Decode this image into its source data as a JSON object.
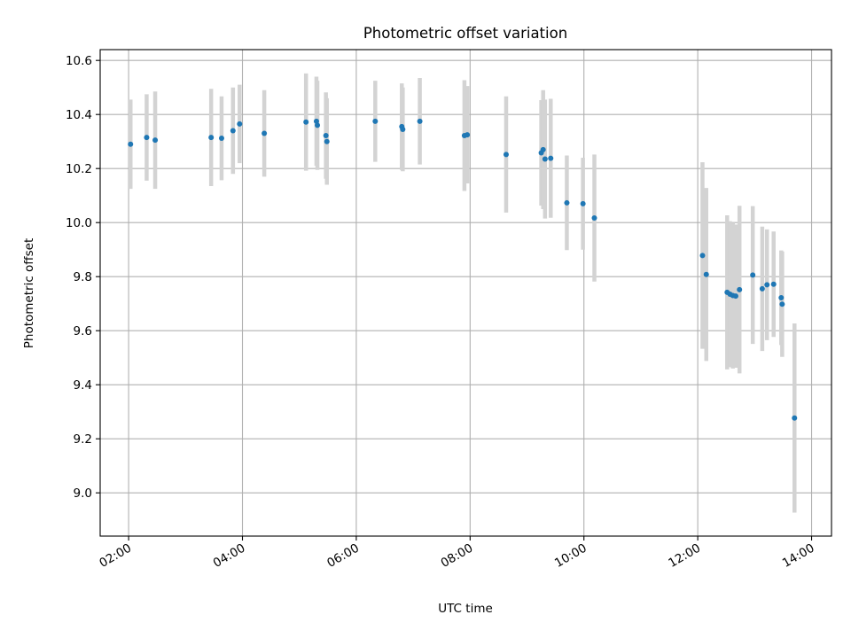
{
  "chart_data": {
    "type": "scatter",
    "title": "Photometric offset variation",
    "xlabel": "UTC time",
    "ylabel": "Photometric offset",
    "x_is_time": true,
    "xlim": [
      "01:30",
      "14:21"
    ],
    "ylim": [
      8.84,
      10.64
    ],
    "x_ticks": [
      "02:00",
      "04:00",
      "06:00",
      "08:00",
      "10:00",
      "12:00",
      "14:00"
    ],
    "y_ticks": [
      9.0,
      9.2,
      9.4,
      9.6,
      9.8,
      10.0,
      10.2,
      10.4,
      10.6
    ],
    "grid": true,
    "colors": {
      "point": "#1f77b4",
      "errorbar": "#d3d3d3"
    },
    "series": [
      {
        "x": [
          "02:02",
          "02:19",
          "02:28",
          "03:27",
          "03:38",
          "03:50",
          "03:57",
          "04:23",
          "05:07",
          "05:18",
          "05:19",
          "05:28",
          "05:29",
          "06:20",
          "06:48",
          "06:49",
          "07:07",
          "07:54",
          "07:57",
          "08:38",
          "09:15",
          "09:17",
          "09:19",
          "09:25",
          "09:42",
          "09:59",
          "10:11",
          "12:05",
          "12:09",
          "12:31",
          "12:34",
          "12:37",
          "12:40",
          "12:44",
          "12:58",
          "13:08",
          "13:13",
          "13:20",
          "13:28",
          "13:29",
          "13:42"
        ],
        "y": [
          10.29,
          10.315,
          10.305,
          10.315,
          10.312,
          10.34,
          10.365,
          10.33,
          10.372,
          10.375,
          10.36,
          10.322,
          10.3,
          10.375,
          10.355,
          10.345,
          10.375,
          10.322,
          10.325,
          10.252,
          10.258,
          10.27,
          10.235,
          10.238,
          10.073,
          10.07,
          10.017,
          9.878,
          9.808,
          9.742,
          9.735,
          9.73,
          9.728,
          9.752,
          9.806,
          9.755,
          9.77,
          9.772,
          9.722,
          9.698,
          9.277
        ],
        "yerr": [
          0.165,
          0.16,
          0.18,
          0.18,
          0.155,
          0.16,
          0.145,
          0.16,
          0.18,
          0.165,
          0.165,
          0.16,
          0.16,
          0.15,
          0.16,
          0.155,
          0.16,
          0.205,
          0.18,
          0.215,
          0.195,
          0.22,
          0.22,
          0.22,
          0.175,
          0.17,
          0.235,
          0.345,
          0.32,
          0.285,
          0.27,
          0.27,
          0.265,
          0.31,
          0.255,
          0.23,
          0.205,
          0.195,
          0.175,
          0.195,
          0.35
        ]
      }
    ]
  }
}
